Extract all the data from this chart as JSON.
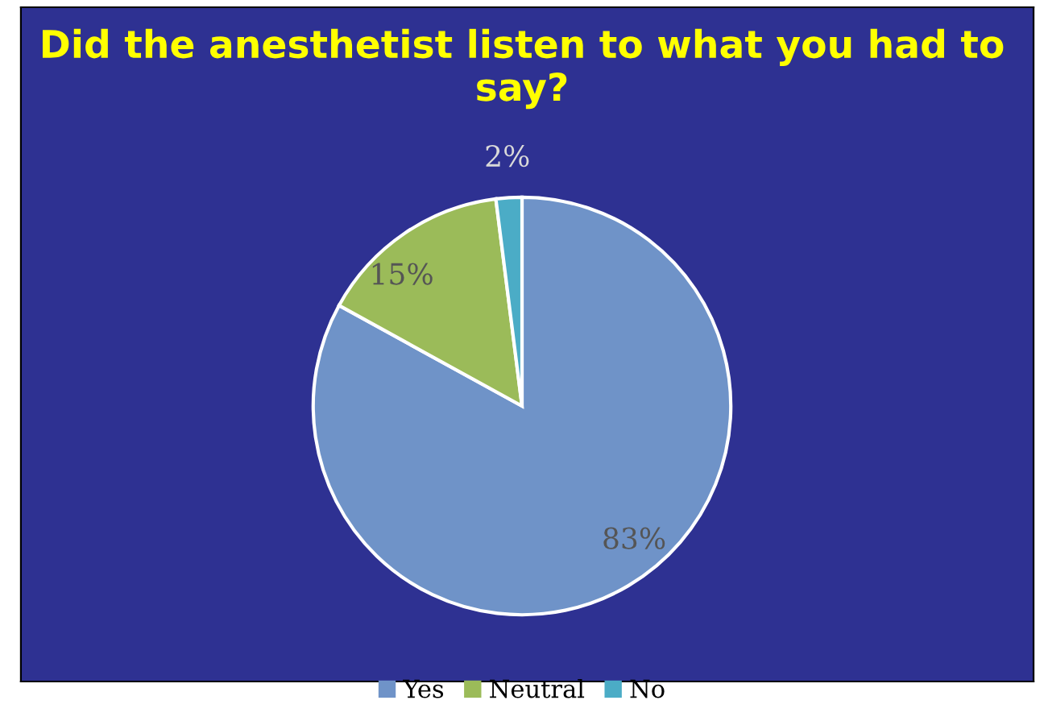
{
  "chart_data": {
    "type": "pie",
    "title": "Did the anesthetist listen to what you had to say?",
    "categories": [
      "Yes",
      "Neutral",
      "No"
    ],
    "values": [
      83,
      15,
      2
    ],
    "colors": [
      "#6f93c8",
      "#9bbb59",
      "#4bacc6"
    ],
    "value_labels": [
      "83%",
      "15%",
      "2%"
    ],
    "legend": "bottom"
  }
}
